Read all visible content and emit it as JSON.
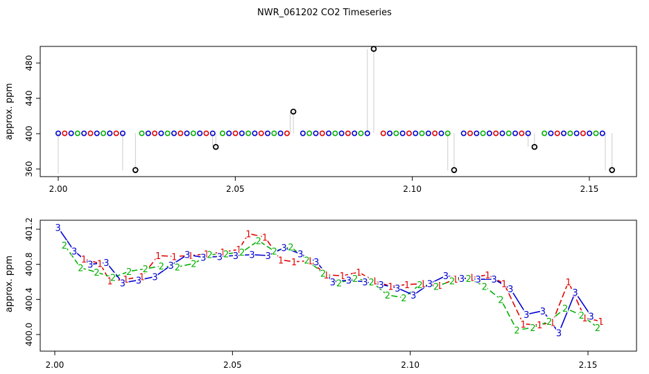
{
  "title": "NWR_061202  CO2 Timeseries",
  "colors": {
    "series_1": "#e00000",
    "series_2": "#00b000",
    "series_3": "#0000d0",
    "highlight": "#000000",
    "drop_line": "#999999"
  },
  "chart_data": [
    {
      "type": "scatter",
      "title": "NWR_061202  CO2 Timeseries",
      "ylabel": "approx. ppm",
      "xlim": [
        2.0,
        2.16
      ],
      "ylim": [
        355,
        498
      ],
      "xticks": [
        "2.00",
        "2.05",
        "2.10",
        "2.15"
      ],
      "yticks": [
        "360",
        "400",
        "440",
        "480"
      ],
      "color_cycle": [
        "blue",
        "red",
        "blue",
        "green"
      ],
      "marker_spacing": 0.00182,
      "drop_lines": true,
      "segments": [
        {
          "x_start": 2.0,
          "x_end": 2.0182,
          "y": 400.4
        },
        {
          "x_start": 2.0236,
          "x_end": 2.0436,
          "y": 400.4
        },
        {
          "x_start": 2.0464,
          "x_end": 2.0655,
          "y": 400.4
        },
        {
          "x_start": 2.0691,
          "x_end": 2.0873,
          "y": 400.4
        },
        {
          "x_start": 2.0918,
          "x_end": 2.11,
          "y": 400.4
        },
        {
          "x_start": 2.1145,
          "x_end": 2.1327,
          "y": 400.4
        },
        {
          "x_start": 2.1373,
          "x_end": 2.1545,
          "y": 400.4
        }
      ],
      "highlights": [
        {
          "x": 2.0218,
          "y": 358.8
        },
        {
          "x": 2.0445,
          "y": 385.0
        },
        {
          "x": 2.0664,
          "y": 425.0
        },
        {
          "x": 2.0891,
          "y": 496.0
        },
        {
          "x": 2.1118,
          "y": 358.8
        },
        {
          "x": 2.1345,
          "y": 385.0
        },
        {
          "x": 2.1564,
          "y": 358.8
        }
      ]
    },
    {
      "type": "line",
      "ylabel": "approx. ppm",
      "xlim": [
        2.0,
        2.16
      ],
      "ylim": [
        399.85,
        401.25
      ],
      "xticks": [
        "2.00",
        "2.05",
        "2.10",
        "2.15"
      ],
      "yticks": [
        "400.0",
        "400.4",
        "400.8",
        "401.2"
      ],
      "series": [
        {
          "name": "1",
          "color": "red",
          "x": [
            2.0082,
            2.0127,
            2.0155,
            2.02,
            2.0245,
            2.0291,
            2.0336,
            2.0382,
            2.0427,
            2.0473,
            2.0518,
            2.0545,
            2.0591,
            2.0636,
            2.0673,
            2.0718,
            2.0764,
            2.0809,
            2.0855,
            2.09,
            2.0945,
            2.0991,
            2.1036,
            2.1082,
            2.1127,
            2.1173,
            2.1218,
            2.1264,
            2.1318,
            2.1364,
            2.14,
            2.1445,
            2.1491,
            2.1536
          ],
          "y": [
            400.86,
            400.81,
            400.61,
            400.63,
            400.66,
            400.9,
            400.89,
            400.9,
            400.92,
            400.94,
            400.97,
            401.15,
            401.11,
            400.85,
            400.83,
            400.84,
            400.68,
            400.67,
            400.71,
            400.61,
            400.55,
            400.57,
            400.58,
            400.56,
            400.63,
            400.65,
            400.68,
            400.58,
            400.12,
            400.11,
            400.14,
            400.6,
            400.19,
            400.15
          ]
        },
        {
          "name": "2",
          "color": "green",
          "x": [
            2.0027,
            2.0073,
            2.0118,
            2.0164,
            2.0209,
            2.0255,
            2.03,
            2.0345,
            2.0391,
            2.0436,
            2.0482,
            2.0527,
            2.0573,
            2.0618,
            2.0664,
            2.0709,
            2.0755,
            2.08,
            2.0845,
            2.0891,
            2.0936,
            2.0982,
            2.1027,
            2.1073,
            2.1118,
            2.1164,
            2.1209,
            2.1255,
            2.13,
            2.1345,
            2.1391,
            2.1436,
            2.1482,
            2.1527
          ],
          "y": [
            401.02,
            400.76,
            400.71,
            400.65,
            400.72,
            400.75,
            400.78,
            400.77,
            400.81,
            400.91,
            400.92,
            400.94,
            401.07,
            400.95,
            401.0,
            400.85,
            400.7,
            400.59,
            400.64,
            400.6,
            400.45,
            400.42,
            400.57,
            400.55,
            400.61,
            400.64,
            400.55,
            400.4,
            400.05,
            400.08,
            400.15,
            400.3,
            400.22,
            400.08
          ]
        },
        {
          "name": "3",
          "color": "blue",
          "x": [
            2.0009,
            2.0055,
            2.01,
            2.0145,
            2.0191,
            2.0236,
            2.0282,
            2.0327,
            2.0373,
            2.0418,
            2.0464,
            2.0509,
            2.0555,
            2.06,
            2.0645,
            2.0691,
            2.0736,
            2.0782,
            2.0827,
            2.0873,
            2.0918,
            2.0964,
            2.1009,
            2.1055,
            2.11,
            2.1145,
            2.1191,
            2.1236,
            2.1282,
            2.1327,
            2.1373,
            2.1418,
            2.1464,
            2.1509
          ],
          "y": [
            401.22,
            400.95,
            400.8,
            400.82,
            400.59,
            400.62,
            400.66,
            400.79,
            400.91,
            400.88,
            400.89,
            400.9,
            400.91,
            400.9,
            400.99,
            400.92,
            400.83,
            400.6,
            400.62,
            400.6,
            400.57,
            400.53,
            400.45,
            400.58,
            400.67,
            400.64,
            400.63,
            400.63,
            400.52,
            400.23,
            400.27,
            400.02,
            400.48,
            400.21
          ]
        }
      ]
    }
  ]
}
